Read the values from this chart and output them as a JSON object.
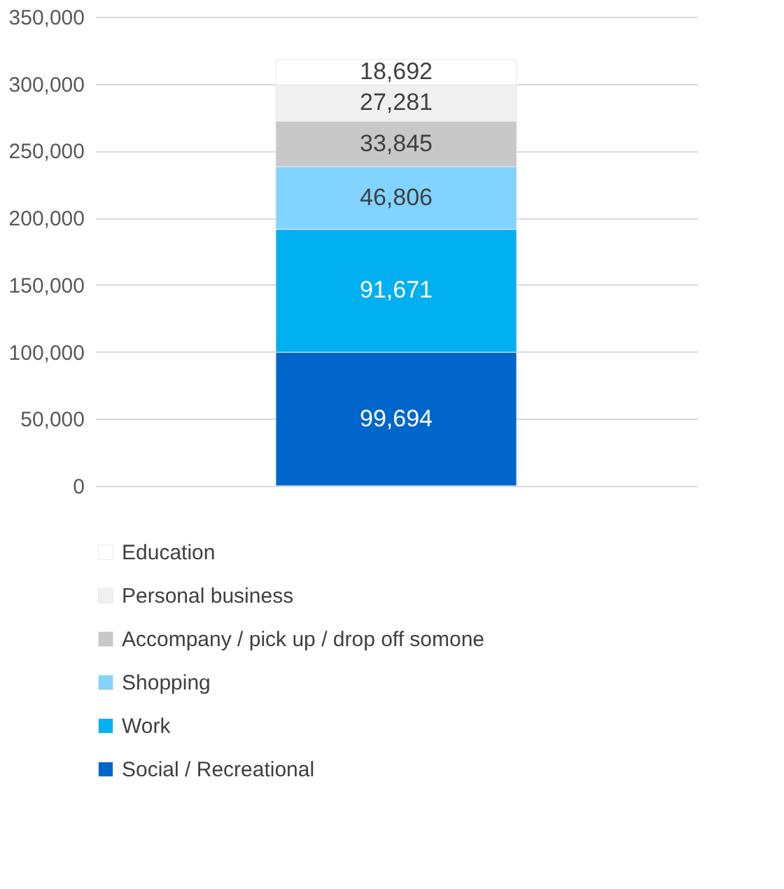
{
  "chart_data": {
    "type": "bar",
    "stacked": true,
    "categories": [
      null
    ],
    "series": [
      {
        "name": "Social / Recreational",
        "color": "#0066cc",
        "values": [
          99694
        ],
        "value_labels": [
          "99,694"
        ]
      },
      {
        "name": "Work",
        "color": "#00b0f0",
        "values": [
          91671
        ],
        "value_labels": [
          "91,671"
        ]
      },
      {
        "name": "Shopping",
        "color": "#80d4ff",
        "values": [
          46806
        ],
        "value_labels": [
          "46,806"
        ]
      },
      {
        "name": "Accompany / pick up / drop off somone",
        "color": "#c8c8c8",
        "values": [
          33845
        ],
        "value_labels": [
          "33,845"
        ]
      },
      {
        "name": "Personal business",
        "color": "#f0f0f0",
        "values": [
          27281
        ],
        "value_labels": [
          "27,281"
        ]
      },
      {
        "name": "Education",
        "color": "#ffffff",
        "values": [
          18692
        ],
        "value_labels": [
          "18,692"
        ]
      }
    ],
    "ylim": [
      0,
      350000
    ],
    "yticks": [
      0,
      {
        "value": 50000,
        "label": "50,000"
      },
      {
        "value": 100000,
        "label": "100,000"
      },
      {
        "value": 150000,
        "label": "150,000"
      },
      {
        "value": 200000,
        "label": "200,000"
      },
      {
        "value": 250000,
        "label": "250,000"
      },
      {
        "value": 300000,
        "label": "300,000"
      },
      {
        "value": 350000,
        "label": "350,000"
      }
    ],
    "grid": "y",
    "legend": "bottom",
    "tick_labels": "y"
  }
}
